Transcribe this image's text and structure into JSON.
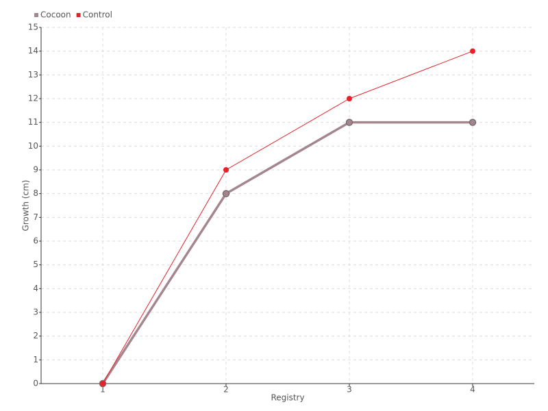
{
  "chart_data": {
    "type": "line",
    "x_label": "Registry",
    "y_label": "Growth (cm)",
    "categories": [
      "1",
      "2",
      "3",
      "4"
    ],
    "series": [
      {
        "name": "Cocoon",
        "color": "#a3868e",
        "values": [
          0,
          8,
          11,
          11
        ]
      },
      {
        "name": "Control",
        "color": "#e8202a",
        "values": [
          0,
          9,
          12,
          14
        ]
      }
    ],
    "ylim": [
      0,
      15
    ],
    "yticks": [
      0,
      1,
      2,
      3,
      4,
      5,
      6,
      7,
      8,
      9,
      10,
      11,
      12,
      13,
      14,
      15
    ],
    "grid": true,
    "legend": "top-left"
  }
}
